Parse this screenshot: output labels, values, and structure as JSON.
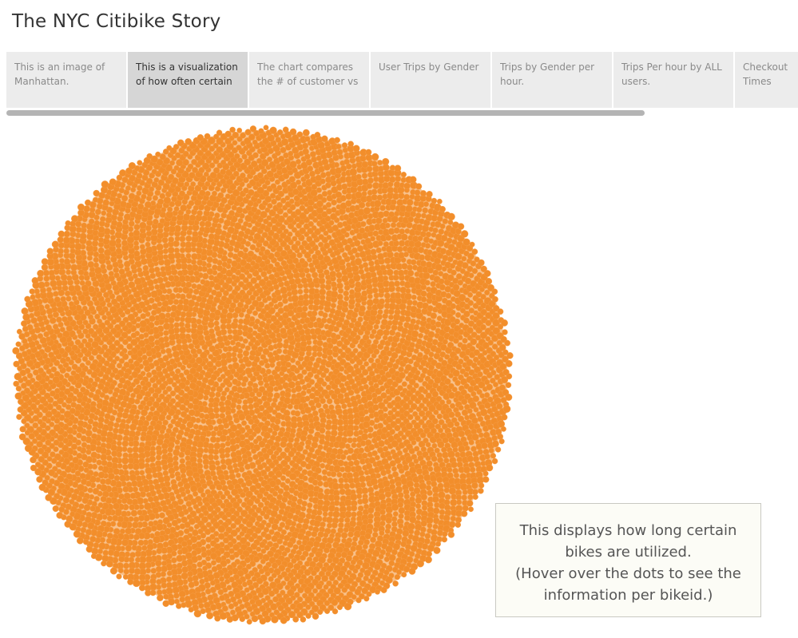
{
  "story": {
    "title": "The NYC Citibike Story"
  },
  "navigator": {
    "points": [
      {
        "label": "This is an image of Manhattan.",
        "active": false
      },
      {
        "label": "This is a visualization of how often certain ..",
        "active": true
      },
      {
        "label": "The chart compares the # of customer vs ..",
        "active": false
      },
      {
        "label": "User Trips by Gender",
        "active": false
      },
      {
        "label": "Trips by Gender per hour.",
        "active": false
      },
      {
        "label": "Trips Per hour by ALL users.",
        "active": false
      },
      {
        "label": "Checkout Times per..",
        "active": false
      }
    ]
  },
  "caption": {
    "line1": "This displays how long certain bikes are utilized.",
    "line2": "(Hover over the dots to see the information per bikeid.)"
  },
  "visualization": {
    "mark_color": "#f28e2b",
    "mark_stroke": "#f5a04c"
  }
}
